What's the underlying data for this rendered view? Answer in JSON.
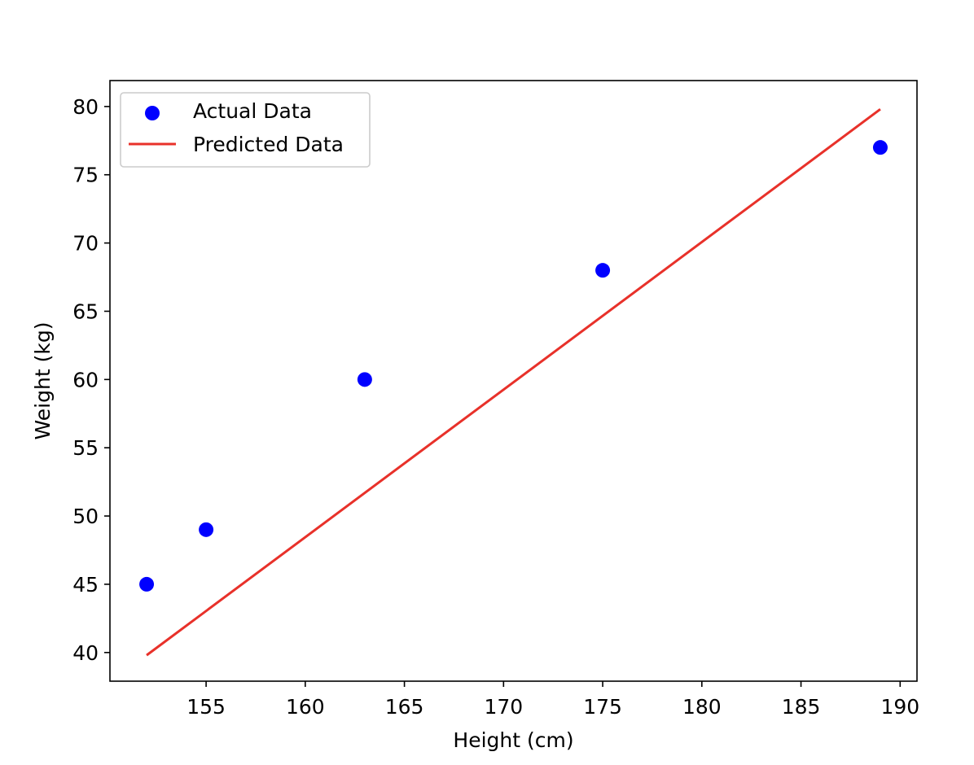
{
  "chart_data": {
    "type": "scatter",
    "title": "",
    "xlabel": "Height (cm)",
    "ylabel": "Weight (kg)",
    "xlim": [
      150.15,
      190.85
    ],
    "ylim": [
      37.9,
      81.9
    ],
    "x_ticks": [
      155,
      160,
      165,
      170,
      175,
      180,
      185,
      190
    ],
    "y_ticks": [
      40,
      45,
      50,
      55,
      60,
      65,
      70,
      75,
      80
    ],
    "grid": false,
    "legend_position": "upper-left",
    "series": [
      {
        "name": "Actual Data",
        "kind": "scatter",
        "color": "#0000ff",
        "x": [
          152,
          155,
          163,
          175,
          189
        ],
        "y": [
          45,
          49,
          60,
          68,
          77
        ]
      },
      {
        "name": "Predicted Data",
        "kind": "line",
        "color": "#e8312a",
        "x": [
          152,
          189
        ],
        "y": [
          39.8,
          79.8
        ]
      }
    ]
  }
}
